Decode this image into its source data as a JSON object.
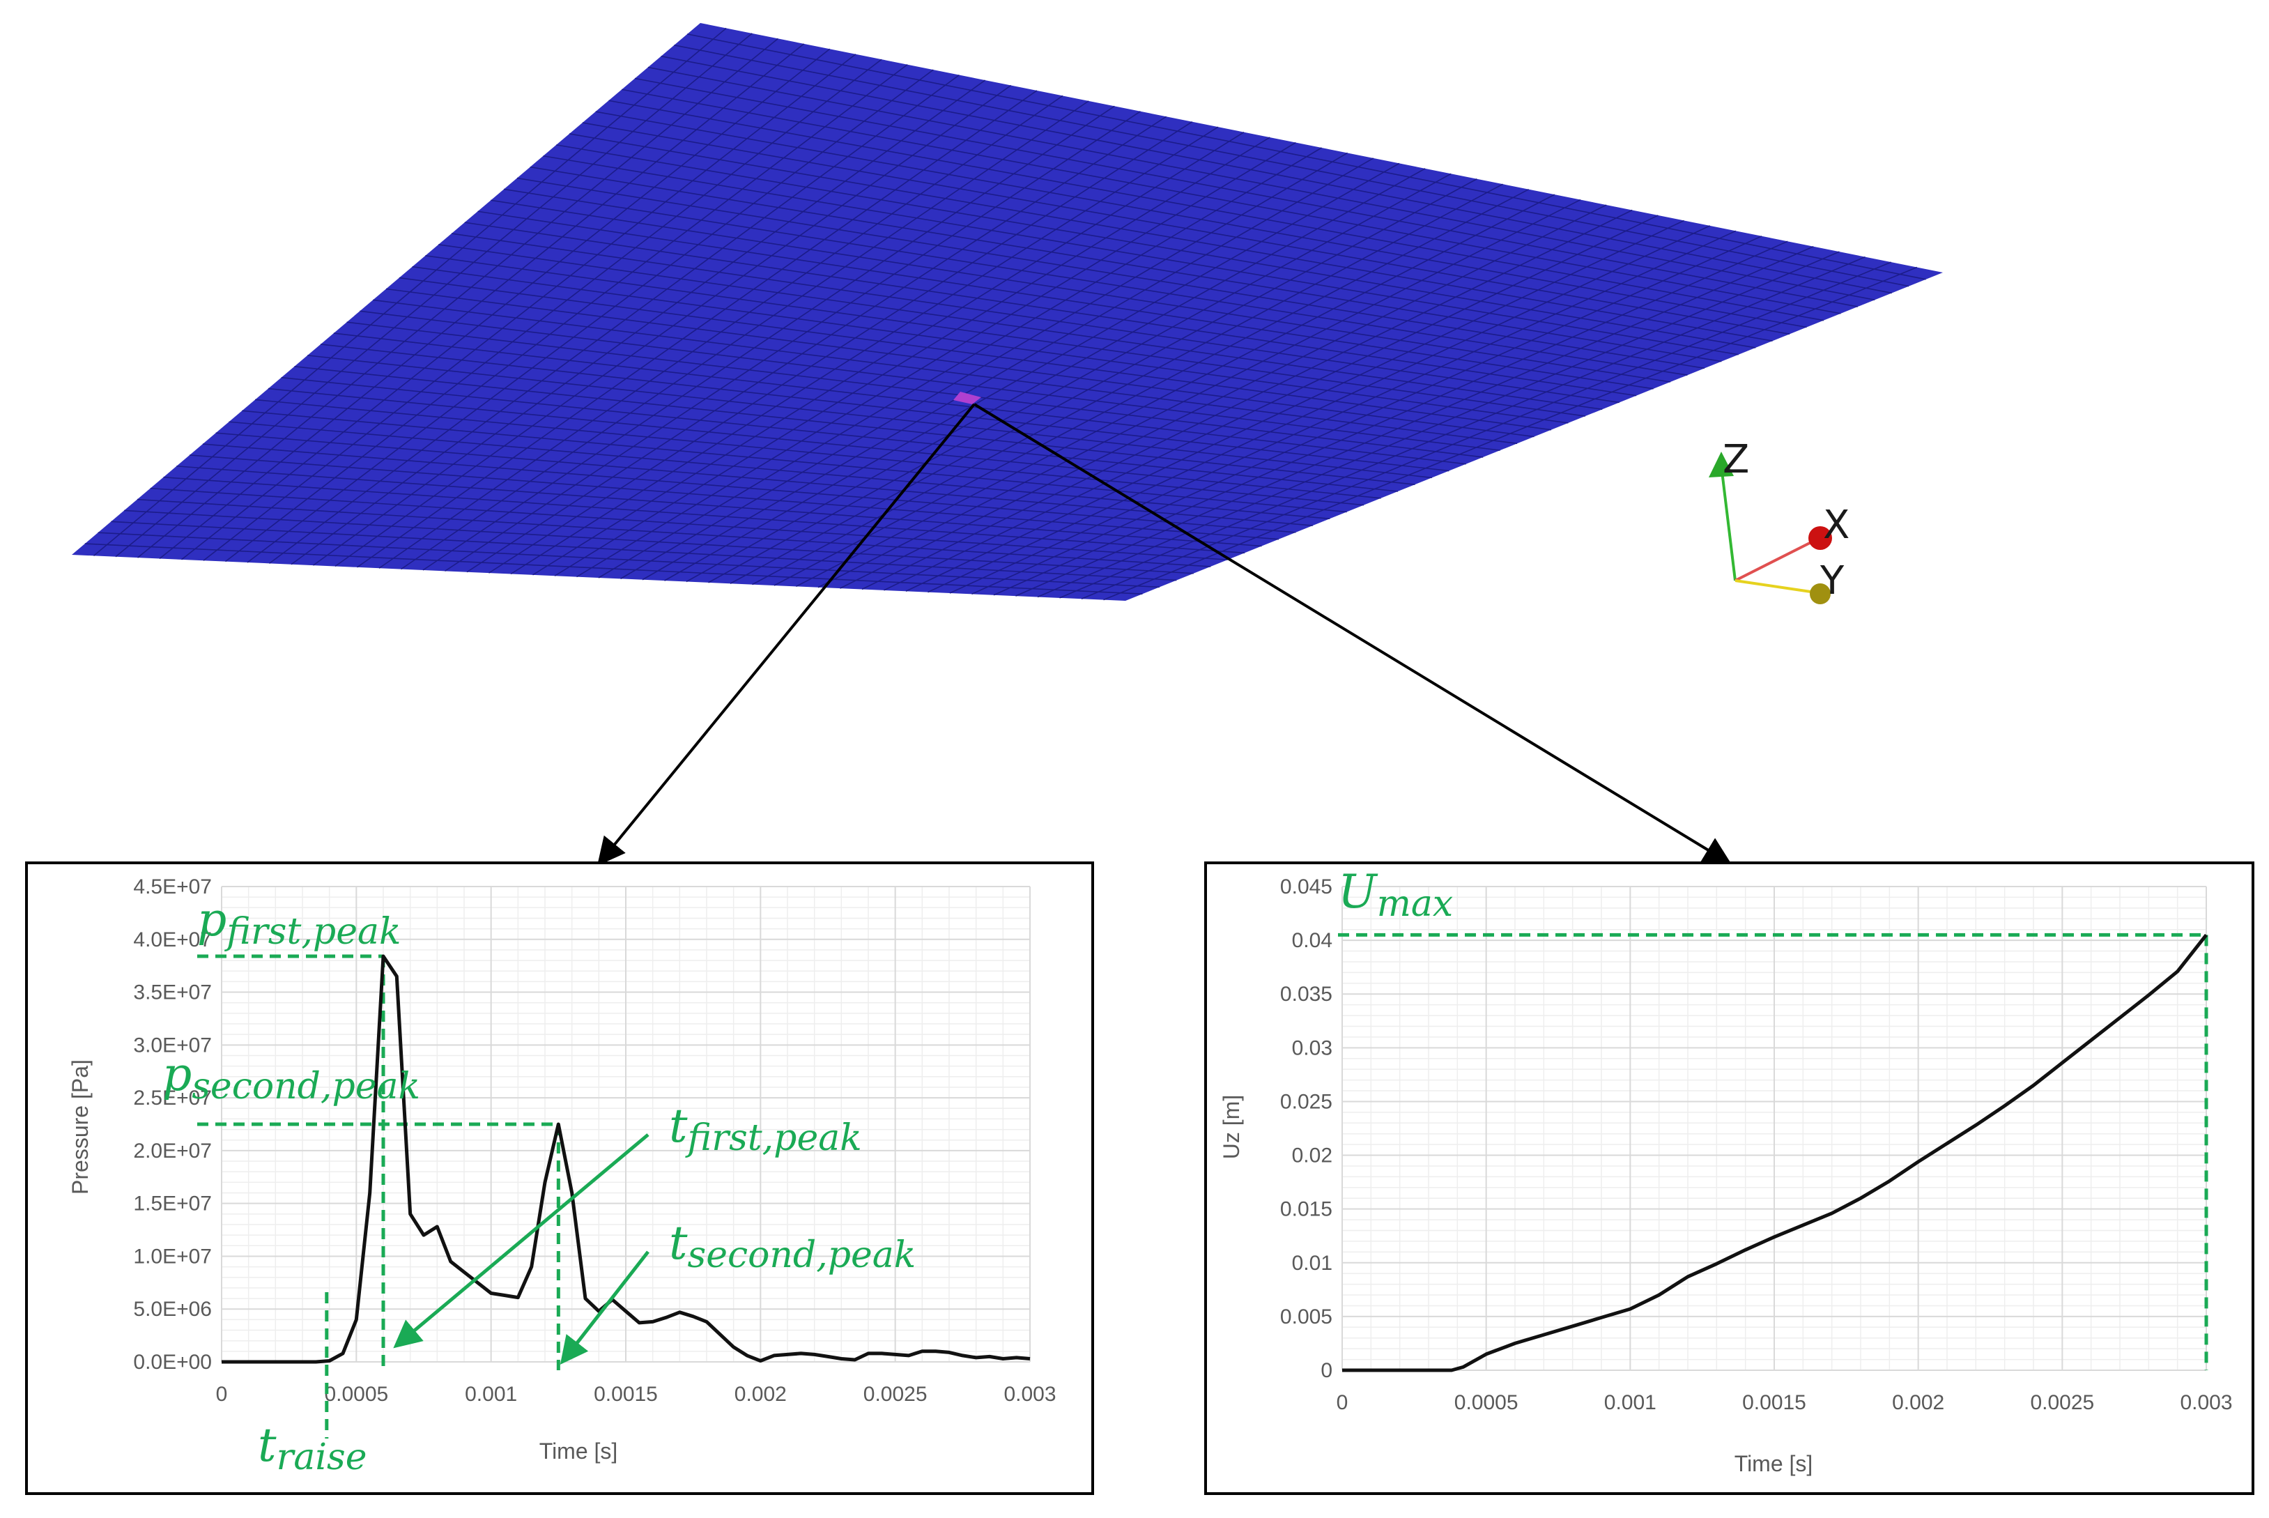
{
  "colors": {
    "plate": "#2f2fc0",
    "plate_grid": "#1c1c8a",
    "accent_green": "#1aaa55",
    "curve": "#111111",
    "gridline": "#d9d9d9",
    "axis_x": "#e05050",
    "axis_y": "#e6d21e",
    "axis_z": "#33b833"
  },
  "axis_triad": {
    "z_label": "Z",
    "x_label": "X",
    "y_label": "Y"
  },
  "annotations": {
    "pressure": {
      "p_first_peak": {
        "main": "p",
        "sub": "first,peak"
      },
      "p_second_peak": {
        "main": "p",
        "sub": "second,peak"
      },
      "t_first_peak": {
        "main": "t",
        "sub": "first,peak"
      },
      "t_second_peak": {
        "main": "t",
        "sub": "second,peak"
      },
      "t_raise": {
        "main": "t",
        "sub": "raise"
      },
      "t_raise_value": 0.00039,
      "t_first_peak_value": 0.0006,
      "p_first_peak_value": 38400000,
      "t_second_peak_value": 0.00125,
      "p_second_peak_value": 22500000
    },
    "displacement": {
      "u_max": {
        "main": "U",
        "sub": "max"
      },
      "u_max_value": 0.0405,
      "t_value": 0.003
    }
  },
  "chart_data": [
    {
      "type": "line",
      "xlabel": "Time [s]",
      "ylabel": "Pressure [Pa]",
      "xlim": [
        0,
        0.003
      ],
      "ylim": [
        0,
        45000000
      ],
      "xticks": [
        0,
        0.0005,
        0.001,
        0.0015,
        0.002,
        0.0025,
        0.003
      ],
      "xtick_labels": [
        "0",
        "0.0005",
        "0.001",
        "0.0015",
        "0.002",
        "0.0025",
        "0.003"
      ],
      "yticks": [
        0,
        5000000,
        10000000,
        15000000,
        20000000,
        25000000,
        30000000,
        35000000,
        40000000,
        45000000
      ],
      "ytick_labels": [
        "0.0E+00",
        "5.0E+06",
        "1.0E+07",
        "1.5E+07",
        "2.0E+07",
        "2.5E+07",
        "3.0E+07",
        "3.5E+07",
        "4.0E+07",
        "4.5E+07"
      ],
      "grid": true,
      "series": [
        {
          "x": [
            0,
            5e-05,
            0.0001,
            0.00015,
            0.0002,
            0.00025,
            0.0003,
            0.00035,
            0.0004,
            0.00045,
            0.0005,
            0.00055,
            0.0006,
            0.00065,
            0.0007,
            0.00075,
            0.0008,
            0.00085,
            0.0009,
            0.00095,
            0.001,
            0.00105,
            0.0011,
            0.00115,
            0.0012,
            0.00125,
            0.0013,
            0.00135,
            0.0014,
            0.00145,
            0.0015,
            0.00155,
            0.0016,
            0.00165,
            0.0017,
            0.00175,
            0.0018,
            0.00185,
            0.0019,
            0.00195,
            0.002,
            0.00205,
            0.0021,
            0.00215,
            0.0022,
            0.00225,
            0.0023,
            0.00235,
            0.0024,
            0.00245,
            0.0025,
            0.00255,
            0.0026,
            0.00265,
            0.0027,
            0.00275,
            0.0028,
            0.00285,
            0.0029,
            0.00295,
            0.003
          ],
          "y": [
            0,
            0,
            0,
            0,
            0,
            0,
            0,
            0,
            100000,
            800000,
            4000000,
            16000000,
            38400000,
            36500000,
            14000000,
            12000000,
            12800000,
            9500000,
            8500000,
            7500000,
            6500000,
            6300000,
            6100000,
            9000000,
            17000000,
            22500000,
            16000000,
            6000000,
            4800000,
            5900000,
            4800000,
            3700000,
            3800000,
            4200000,
            4700000,
            4300000,
            3800000,
            2600000,
            1400000,
            600000,
            100000,
            600000,
            700000,
            800000,
            700000,
            500000,
            300000,
            200000,
            800000,
            800000,
            700000,
            600000,
            1000000,
            1000000,
            900000,
            600000,
            400000,
            500000,
            300000,
            400000,
            300000
          ]
        }
      ]
    },
    {
      "type": "line",
      "xlabel": "Time [s]",
      "ylabel": "Uz [m]",
      "xlim": [
        0,
        0.003
      ],
      "ylim": [
        0,
        0.045
      ],
      "xticks": [
        0,
        0.0005,
        0.001,
        0.0015,
        0.002,
        0.0025,
        0.003
      ],
      "xtick_labels": [
        "0",
        "0.0005",
        "0.001",
        "0.0015",
        "0.002",
        "0.0025",
        "0.003"
      ],
      "yticks": [
        0,
        0.005,
        0.01,
        0.015,
        0.02,
        0.025,
        0.03,
        0.035,
        0.04,
        0.045
      ],
      "ytick_labels": [
        "0",
        "0.005",
        "0.01",
        "0.015",
        "0.02",
        "0.025",
        "0.03",
        "0.035",
        "0.04",
        "0.045"
      ],
      "grid": true,
      "series": [
        {
          "x": [
            0,
            0.0001,
            0.0002,
            0.0003,
            0.00038,
            0.00042,
            0.0005,
            0.0006,
            0.0007,
            0.0008,
            0.0009,
            0.001,
            0.0011,
            0.0012,
            0.0013,
            0.0014,
            0.0015,
            0.0016,
            0.0017,
            0.0018,
            0.0019,
            0.002,
            0.0021,
            0.0022,
            0.0023,
            0.0024,
            0.0025,
            0.0026,
            0.0027,
            0.0028,
            0.0029,
            0.003
          ],
          "y": [
            0,
            0,
            0,
            0,
            0,
            0.0003,
            0.0015,
            0.0025,
            0.0033,
            0.0041,
            0.0049,
            0.0057,
            0.007,
            0.0087,
            0.0099,
            0.0112,
            0.0124,
            0.0135,
            0.0146,
            0.016,
            0.0176,
            0.0194,
            0.0211,
            0.0228,
            0.0246,
            0.0265,
            0.0286,
            0.0307,
            0.0328,
            0.0349,
            0.0371,
            0.0405
          ]
        }
      ]
    }
  ]
}
